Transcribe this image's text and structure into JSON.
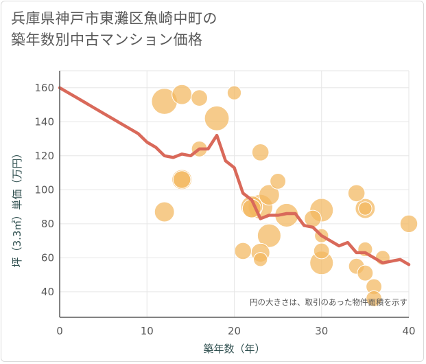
{
  "title_lines": [
    "兵庫県神戸市東灘区魚崎中町の",
    "築年数別中古マンション価格"
  ],
  "chart_data": {
    "type": "scatter",
    "title": "兵庫県神戸市東灘区魚崎中町の築年数別中古マンション価格",
    "xlabel": "築年数（年）",
    "ylabel": "坪（3.3㎡）単価（万円）",
    "xlim": [
      0,
      40
    ],
    "ylim": [
      25,
      170
    ],
    "xticks": [
      0,
      10,
      20,
      30,
      40
    ],
    "yticks": [
      40,
      60,
      80,
      100,
      120,
      140,
      160
    ],
    "grid": true,
    "note": "円の大きさは、取引のあった物件面積を示す",
    "colors": {
      "bubble": "#f3b75e",
      "bubble_dark": "#e8a33f",
      "line": "#d9695a",
      "grid": "#e6e6e6",
      "axis": "#595959"
    },
    "bubbles": [
      {
        "x": 12,
        "y": 152,
        "size": 3.2
      },
      {
        "x": 12,
        "y": 87,
        "size": 2.2
      },
      {
        "x": 14,
        "y": 156,
        "size": 2.2
      },
      {
        "x": 14,
        "y": 106,
        "size": 2.2
      },
      {
        "x": 14,
        "y": 106,
        "size": 1.8
      },
      {
        "x": 16,
        "y": 154,
        "size": 1.6
      },
      {
        "x": 16,
        "y": 124,
        "size": 1.5
      },
      {
        "x": 18,
        "y": 142,
        "size": 3.0
      },
      {
        "x": 20,
        "y": 157,
        "size": 1.2
      },
      {
        "x": 21,
        "y": 64,
        "size": 1.7
      },
      {
        "x": 22,
        "y": 90,
        "size": 2.5
      },
      {
        "x": 22,
        "y": 89,
        "size": 2.0
      },
      {
        "x": 23,
        "y": 122,
        "size": 1.7
      },
      {
        "x": 23,
        "y": 90,
        "size": 3.0
      },
      {
        "x": 23,
        "y": 63,
        "size": 2.0
      },
      {
        "x": 23,
        "y": 59,
        "size": 1.2
      },
      {
        "x": 24,
        "y": 97,
        "size": 2.3
      },
      {
        "x": 24,
        "y": 73,
        "size": 2.8
      },
      {
        "x": 25,
        "y": 105,
        "size": 1.5
      },
      {
        "x": 26,
        "y": 85,
        "size": 2.8
      },
      {
        "x": 29,
        "y": 83,
        "size": 1.7
      },
      {
        "x": 30,
        "y": 88,
        "size": 2.8
      },
      {
        "x": 30,
        "y": 73,
        "size": 1.2
      },
      {
        "x": 30,
        "y": 64,
        "size": 1.5
      },
      {
        "x": 30,
        "y": 57,
        "size": 2.8
      },
      {
        "x": 34,
        "y": 98,
        "size": 1.7
      },
      {
        "x": 34,
        "y": 55,
        "size": 1.5
      },
      {
        "x": 35,
        "y": 89,
        "size": 2.2
      },
      {
        "x": 35,
        "y": 89,
        "size": 1.1
      },
      {
        "x": 35,
        "y": 65,
        "size": 1.3
      },
      {
        "x": 35,
        "y": 51,
        "size": 1.5
      },
      {
        "x": 36,
        "y": 43,
        "size": 1.5
      },
      {
        "x": 36,
        "y": 36,
        "size": 1.5
      },
      {
        "x": 37,
        "y": 60,
        "size": 1.3
      },
      {
        "x": 40,
        "y": 80,
        "size": 1.8
      }
    ],
    "trend": {
      "x": [
        0,
        1,
        2,
        3,
        4,
        5,
        6,
        7,
        8,
        9,
        10,
        11,
        12,
        13,
        14,
        15,
        16,
        17,
        18,
        19,
        20,
        21,
        22,
        23,
        24,
        25,
        26,
        27,
        28,
        29,
        30,
        31,
        32,
        33,
        34,
        35,
        36,
        37,
        38,
        39,
        40
      ],
      "y": [
        160,
        157,
        154,
        151,
        148,
        145,
        142,
        139,
        136,
        133,
        128,
        125,
        120,
        119,
        121,
        120,
        124,
        124,
        132,
        117,
        113,
        98,
        94,
        83,
        85,
        85,
        86,
        86,
        79,
        78,
        73,
        70,
        67,
        69,
        63,
        63,
        60,
        57,
        58,
        59,
        56
      ]
    }
  }
}
